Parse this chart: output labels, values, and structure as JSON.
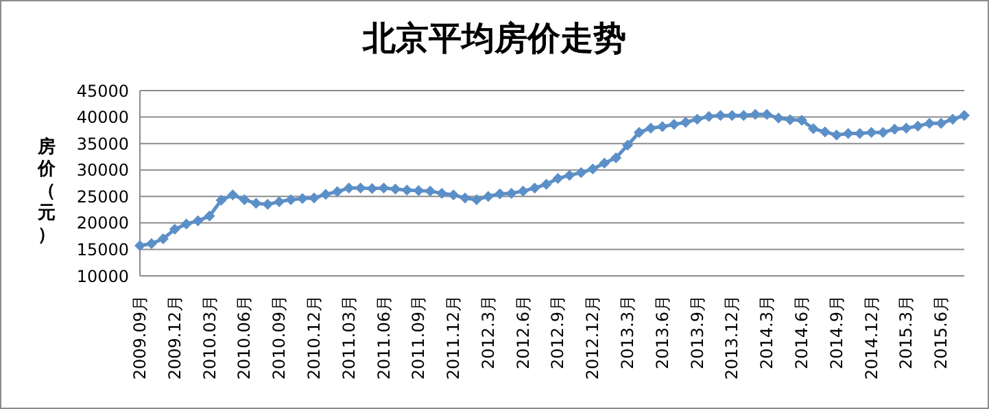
{
  "chart_data": {
    "type": "line",
    "title": "北京平均房价走势",
    "ylabel": "房价（元）",
    "categories": [
      "2009.09月",
      null,
      null,
      "2009.12月",
      null,
      null,
      "2010.03月",
      null,
      null,
      "2010.06月",
      null,
      null,
      "2010.09月",
      null,
      null,
      "2010.12月",
      null,
      null,
      "2011.03月",
      null,
      null,
      "2011.06月",
      null,
      null,
      "2011.09月",
      null,
      null,
      "2011.12月",
      null,
      null,
      "2012.3月",
      null,
      null,
      "2012.6月",
      null,
      null,
      "2012.9月",
      null,
      null,
      "2012.12月",
      null,
      null,
      "2013.3月",
      null,
      null,
      "2013.6月",
      null,
      null,
      "2013.9月",
      null,
      null,
      "2013.12月",
      null,
      null,
      "2014.3月",
      null,
      null,
      "2014.6月",
      null,
      null,
      "2014.9月",
      null,
      null,
      "2014.12月",
      null,
      null,
      "2015.3月",
      null,
      null,
      "2015.6月",
      null,
      null
    ],
    "series": [
      {
        "color": "#5b8fc7",
        "values": [
          15700,
          16100,
          17000,
          18800,
          19800,
          20400,
          21300,
          24300,
          25300,
          24400,
          23700,
          23500,
          24000,
          24400,
          24600,
          24700,
          25400,
          25900,
          26600,
          26600,
          26500,
          26600,
          26400,
          26200,
          26100,
          26000,
          25600,
          25300,
          24700,
          24400,
          25000,
          25500,
          25600,
          26000,
          26600,
          27300,
          28400,
          29000,
          29500,
          30200,
          31300,
          32300,
          34700,
          37100,
          37900,
          38200,
          38600,
          39000,
          39600,
          40100,
          40300,
          40300,
          40300,
          40500,
          40500,
          39800,
          39500,
          39400,
          37800,
          37200,
          36600,
          36900,
          36900,
          37100,
          37100,
          37700,
          37900,
          38300,
          38800,
          38800,
          39600,
          40300
        ]
      }
    ],
    "ylim": [
      10000,
      45000
    ],
    "yticks": [
      10000,
      15000,
      20000,
      25000,
      30000,
      35000,
      40000,
      45000
    ],
    "grid": "y",
    "marker": "diamond",
    "line_style": "solid"
  }
}
